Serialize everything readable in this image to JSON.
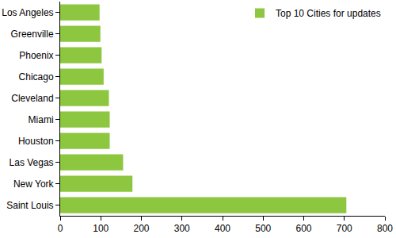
{
  "chart_data": {
    "type": "bar",
    "orientation": "horizontal",
    "categories": [
      "Saint Louis",
      "New York",
      "Las Vegas",
      "Houston",
      "Miami",
      "Cleveland",
      "Chicago",
      "Phoenix",
      "Greenville",
      "Los Angeles"
    ],
    "series": [
      {
        "name": "Top 10 Cities for updates",
        "color": "#8dc63f",
        "values": [
          705,
          178,
          155,
          122,
          122,
          120,
          107,
          102,
          99,
          97
        ]
      }
    ],
    "xlim": [
      0,
      800
    ],
    "xticks": [
      0,
      100,
      200,
      300,
      400,
      500,
      600,
      700,
      800
    ],
    "grid": false,
    "legend": "top-right"
  }
}
